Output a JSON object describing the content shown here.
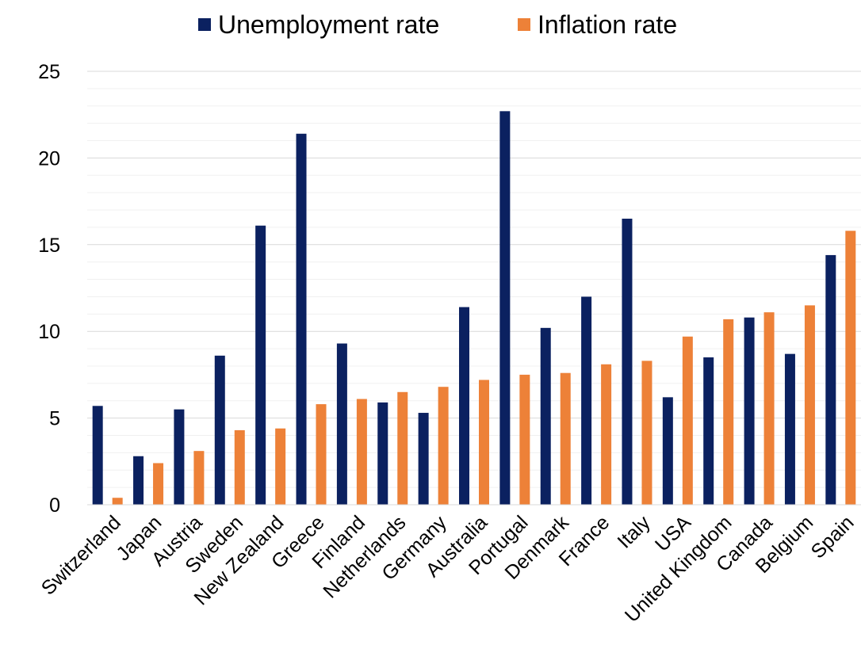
{
  "chart_data": {
    "type": "bar",
    "title": "",
    "xlabel": "",
    "ylabel": "",
    "categories": [
      "Switzerland",
      "Japan",
      "Austria",
      "Sweden",
      "New Zealand",
      "Greece",
      "Finland",
      "Netherlands",
      "Germany",
      "Australia",
      "Portugal",
      "Denmark",
      "France",
      "Italy",
      "USA",
      "United Kingdom",
      "Canada",
      "Belgium",
      "Spain"
    ],
    "series": [
      {
        "name": "Unemployment rate",
        "color": "#0B2160",
        "values": [
          5.7,
          2.8,
          5.5,
          8.6,
          16.1,
          21.4,
          9.3,
          5.9,
          5.3,
          11.4,
          22.7,
          10.2,
          12.0,
          16.5,
          6.2,
          8.5,
          10.8,
          8.7,
          14.4
        ]
      },
      {
        "name": "Inflation rate",
        "color": "#ED8138",
        "values": [
          0.4,
          2.4,
          3.1,
          4.3,
          4.4,
          5.8,
          6.1,
          6.5,
          6.8,
          7.2,
          7.5,
          7.6,
          8.1,
          8.3,
          9.7,
          10.7,
          11.1,
          11.5,
          15.8
        ]
      }
    ],
    "ylim": [
      0,
      25
    ],
    "yticks": [
      0,
      5,
      10,
      15,
      20,
      25
    ],
    "grid": true,
    "legend_position": "top"
  }
}
